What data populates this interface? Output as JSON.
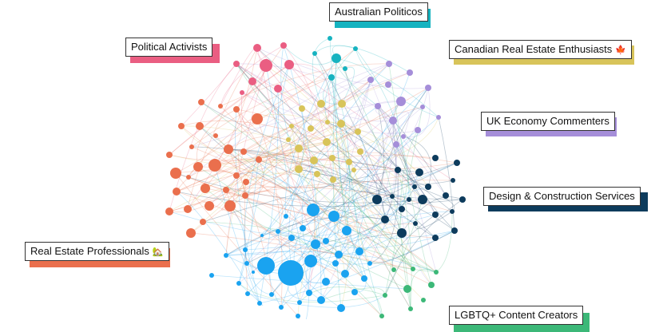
{
  "communities": [
    {
      "id": "australian_politicos",
      "label": "Australian Politicos",
      "emoji": "",
      "color": "#16b3c0"
    },
    {
      "id": "political_activists",
      "label": "Political Activists",
      "emoji": "",
      "color": "#ea5e82"
    },
    {
      "id": "canadian_real_estate",
      "label": "Canadian Real Estate Enthusiasts",
      "emoji": "🍁",
      "color": "#d8c45a"
    },
    {
      "id": "uk_economy",
      "label": "UK Economy Commenters",
      "emoji": "",
      "color": "#a58ed9"
    },
    {
      "id": "design_construction",
      "label": "Design & Construction Services",
      "emoji": "",
      "color": "#0d3b5c"
    },
    {
      "id": "real_estate_professionals",
      "label": "Real Estate Professionals",
      "emoji": "🏡",
      "color": "#ea6f4d"
    },
    {
      "id": "lgbtq_creators",
      "label": "LGBTQ+ Content Creators",
      "emoji": "",
      "color": "#3cb878"
    }
  ],
  "large_cluster_color": "#1aa3f0"
}
